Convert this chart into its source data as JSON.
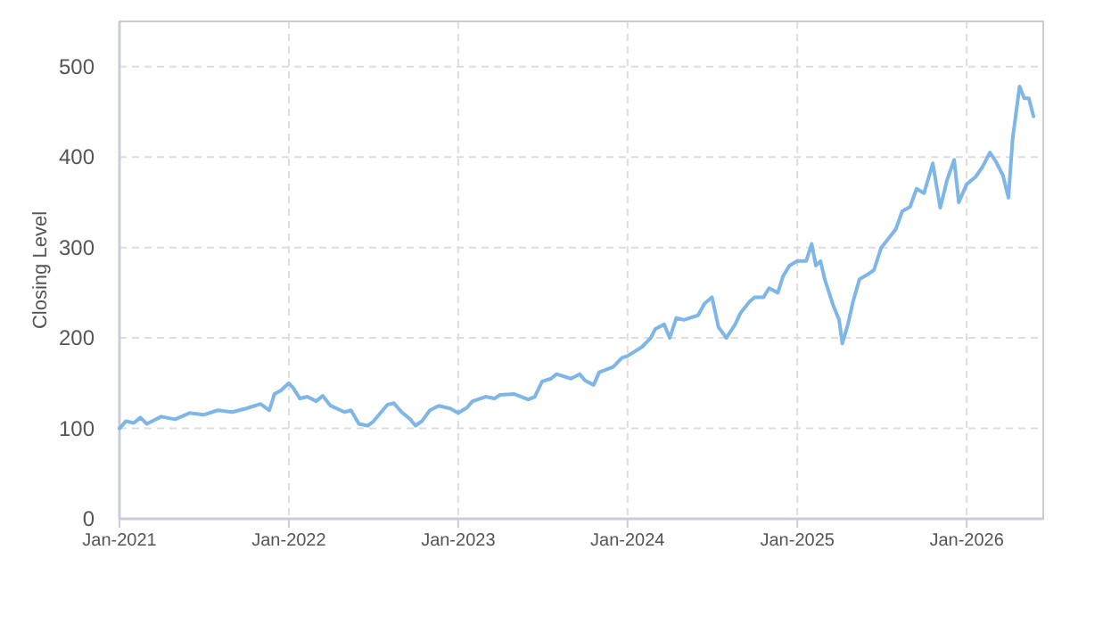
{
  "chart_data": {
    "type": "line",
    "ylabel": "Closing Level",
    "xlim": [
      "2021-01-01",
      "2026-06-15"
    ],
    "ylim": [
      0,
      550
    ],
    "xticks": [
      {
        "value": "2021-01-01",
        "label": "Jan-2021"
      },
      {
        "value": "2022-01-01",
        "label": "Jan-2022"
      },
      {
        "value": "2023-01-01",
        "label": "Jan-2023"
      },
      {
        "value": "2024-01-01",
        "label": "Jan-2024"
      },
      {
        "value": "2025-01-01",
        "label": "Jan-2025"
      },
      {
        "value": "2026-01-01",
        "label": "Jan-2026"
      }
    ],
    "yticks": [
      0,
      100,
      200,
      300,
      400,
      500
    ],
    "grid": true,
    "line_style": "solid",
    "marker": "none",
    "series": [
      {
        "color": "#7eb6e8",
        "x": [
          "2021-01-01",
          "2021-01-15",
          "2021-02-01",
          "2021-02-15",
          "2021-03-01",
          "2021-04-01",
          "2021-05-01",
          "2021-06-01",
          "2021-07-01",
          "2021-08-01",
          "2021-09-01",
          "2021-10-01",
          "2021-11-01",
          "2021-11-20",
          "2021-12-01",
          "2021-12-15",
          "2022-01-01",
          "2022-01-10",
          "2022-01-25",
          "2022-02-10",
          "2022-03-01",
          "2022-03-15",
          "2022-04-01",
          "2022-05-01",
          "2022-05-15",
          "2022-06-01",
          "2022-06-20",
          "2022-07-01",
          "2022-08-01",
          "2022-08-15",
          "2022-09-01",
          "2022-09-20",
          "2022-10-01",
          "2022-10-15",
          "2022-11-01",
          "2022-11-20",
          "2022-12-15",
          "2023-01-01",
          "2023-01-20",
          "2023-02-01",
          "2023-03-01",
          "2023-03-20",
          "2023-04-01",
          "2023-05-01",
          "2023-06-01",
          "2023-06-15",
          "2023-07-01",
          "2023-07-20",
          "2023-08-01",
          "2023-09-01",
          "2023-09-20",
          "2023-10-01",
          "2023-10-20",
          "2023-11-01",
          "2023-12-01",
          "2023-12-20",
          "2024-01-01",
          "2024-02-01",
          "2024-02-20",
          "2024-03-01",
          "2024-03-20",
          "2024-04-01",
          "2024-04-15",
          "2024-05-01",
          "2024-06-01",
          "2024-06-15",
          "2024-07-01",
          "2024-07-15",
          "2024-08-01",
          "2024-08-20",
          "2024-09-01",
          "2024-09-20",
          "2024-10-01",
          "2024-10-20",
          "2024-11-01",
          "2024-11-20",
          "2024-12-01",
          "2024-12-15",
          "2025-01-01",
          "2025-01-20",
          "2025-02-01",
          "2025-02-10",
          "2025-02-20",
          "2025-03-01",
          "2025-03-20",
          "2025-04-01",
          "2025-04-08",
          "2025-04-20",
          "2025-05-01",
          "2025-05-15",
          "2025-06-01",
          "2025-06-15",
          "2025-07-01",
          "2025-08-01",
          "2025-08-15",
          "2025-09-01",
          "2025-09-15",
          "2025-10-01",
          "2025-10-20",
          "2025-11-05",
          "2025-11-20",
          "2025-12-05",
          "2025-12-15",
          "2026-01-01",
          "2026-01-20",
          "2026-02-05",
          "2026-02-20",
          "2026-03-05",
          "2026-03-20",
          "2026-04-01",
          "2026-04-10",
          "2026-04-25",
          "2026-05-05",
          "2026-05-15",
          "2026-05-25"
        ],
        "values": [
          100,
          108,
          106,
          112,
          105,
          113,
          110,
          117,
          115,
          120,
          118,
          122,
          127,
          120,
          138,
          142,
          150,
          145,
          133,
          135,
          130,
          136,
          125,
          118,
          120,
          105,
          103,
          107,
          126,
          128,
          118,
          110,
          103,
          108,
          120,
          125,
          122,
          117,
          123,
          130,
          135,
          133,
          137,
          138,
          132,
          135,
          152,
          155,
          160,
          155,
          160,
          153,
          148,
          162,
          168,
          178,
          180,
          190,
          200,
          210,
          215,
          200,
          222,
          220,
          225,
          238,
          245,
          212,
          200,
          215,
          228,
          240,
          245,
          245,
          255,
          250,
          268,
          280,
          285,
          285,
          304,
          280,
          285,
          265,
          235,
          220,
          194,
          215,
          240,
          265,
          270,
          275,
          300,
          320,
          340,
          345,
          365,
          360,
          393,
          344,
          375,
          397,
          350,
          370,
          378,
          390,
          405,
          395,
          380,
          355,
          420,
          478,
          465,
          465,
          445
        ]
      }
    ]
  }
}
